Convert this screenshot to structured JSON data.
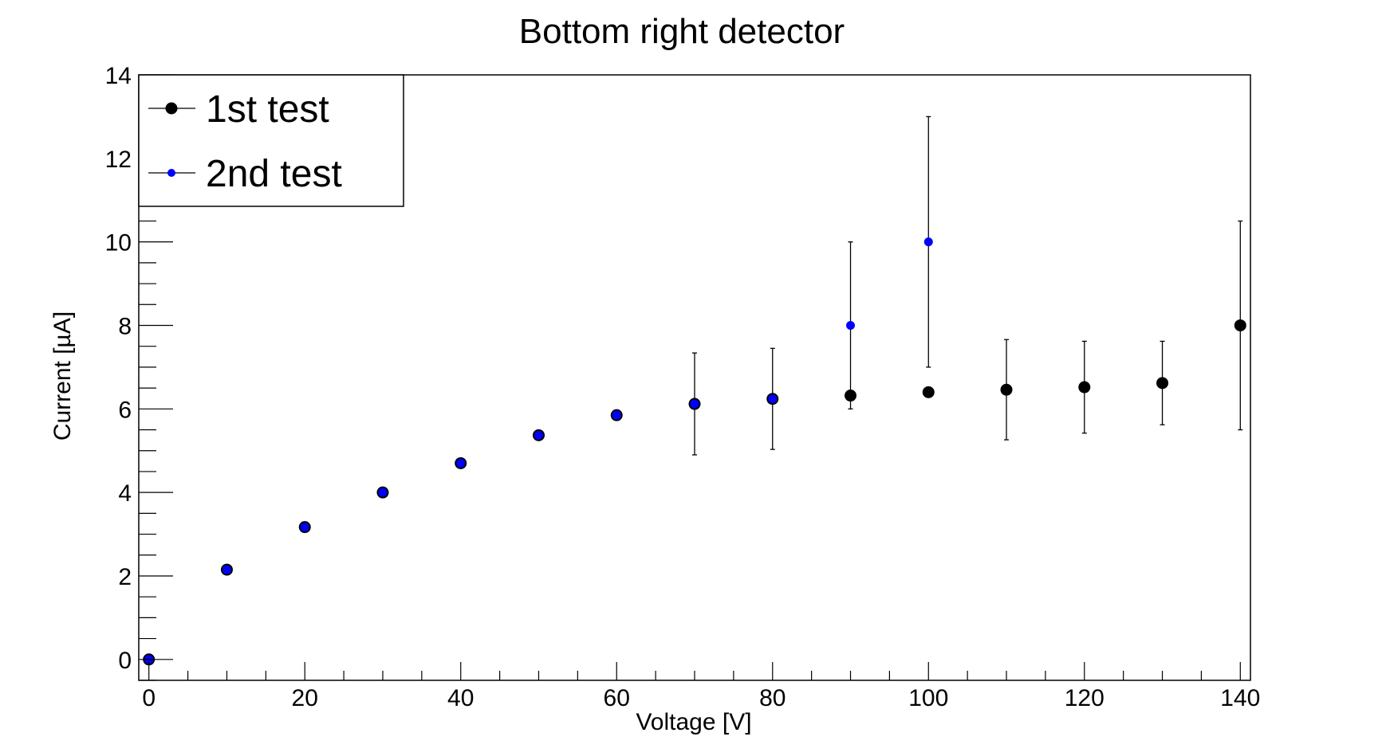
{
  "chart_data": {
    "type": "scatter",
    "title": "Bottom right detector",
    "xlabel": "Voltage [V]",
    "ylabel": "Current [µA]",
    "xlim": [
      -1.3,
      141.3
    ],
    "ylim": [
      -0.5,
      14
    ],
    "xticks": [
      0,
      20,
      40,
      60,
      80,
      100,
      120,
      140
    ],
    "yticks": [
      0,
      2,
      4,
      6,
      8,
      10,
      12,
      14
    ],
    "grid": false,
    "legend_position": "top-left",
    "series": [
      {
        "name": "1st test",
        "color": "#000000",
        "x": [
          0,
          10,
          20,
          30,
          40,
          50,
          60,
          70,
          80,
          90,
          100,
          110,
          120,
          130,
          140
        ],
        "y": [
          0,
          2.15,
          3.17,
          4.0,
          4.7,
          5.37,
          5.85,
          6.12,
          6.24,
          6.32,
          6.4,
          6.46,
          6.52,
          6.62,
          8.0
        ],
        "yerr": [
          0,
          0,
          0,
          0,
          0,
          0,
          0,
          1.22,
          1.21,
          0,
          0,
          1.2,
          1.1,
          1.0,
          2.5
        ]
      },
      {
        "name": "2nd test",
        "color": "#0000ff",
        "x": [
          0,
          10,
          20,
          30,
          40,
          50,
          60,
          70,
          80,
          90,
          100
        ],
        "y": [
          0,
          2.15,
          3.17,
          4.0,
          4.7,
          5.37,
          5.85,
          6.12,
          6.24,
          8.0,
          10.0
        ],
        "yerr": [
          0,
          0,
          0,
          0,
          0,
          0,
          0,
          0,
          0,
          2.0,
          3.0
        ]
      }
    ]
  }
}
